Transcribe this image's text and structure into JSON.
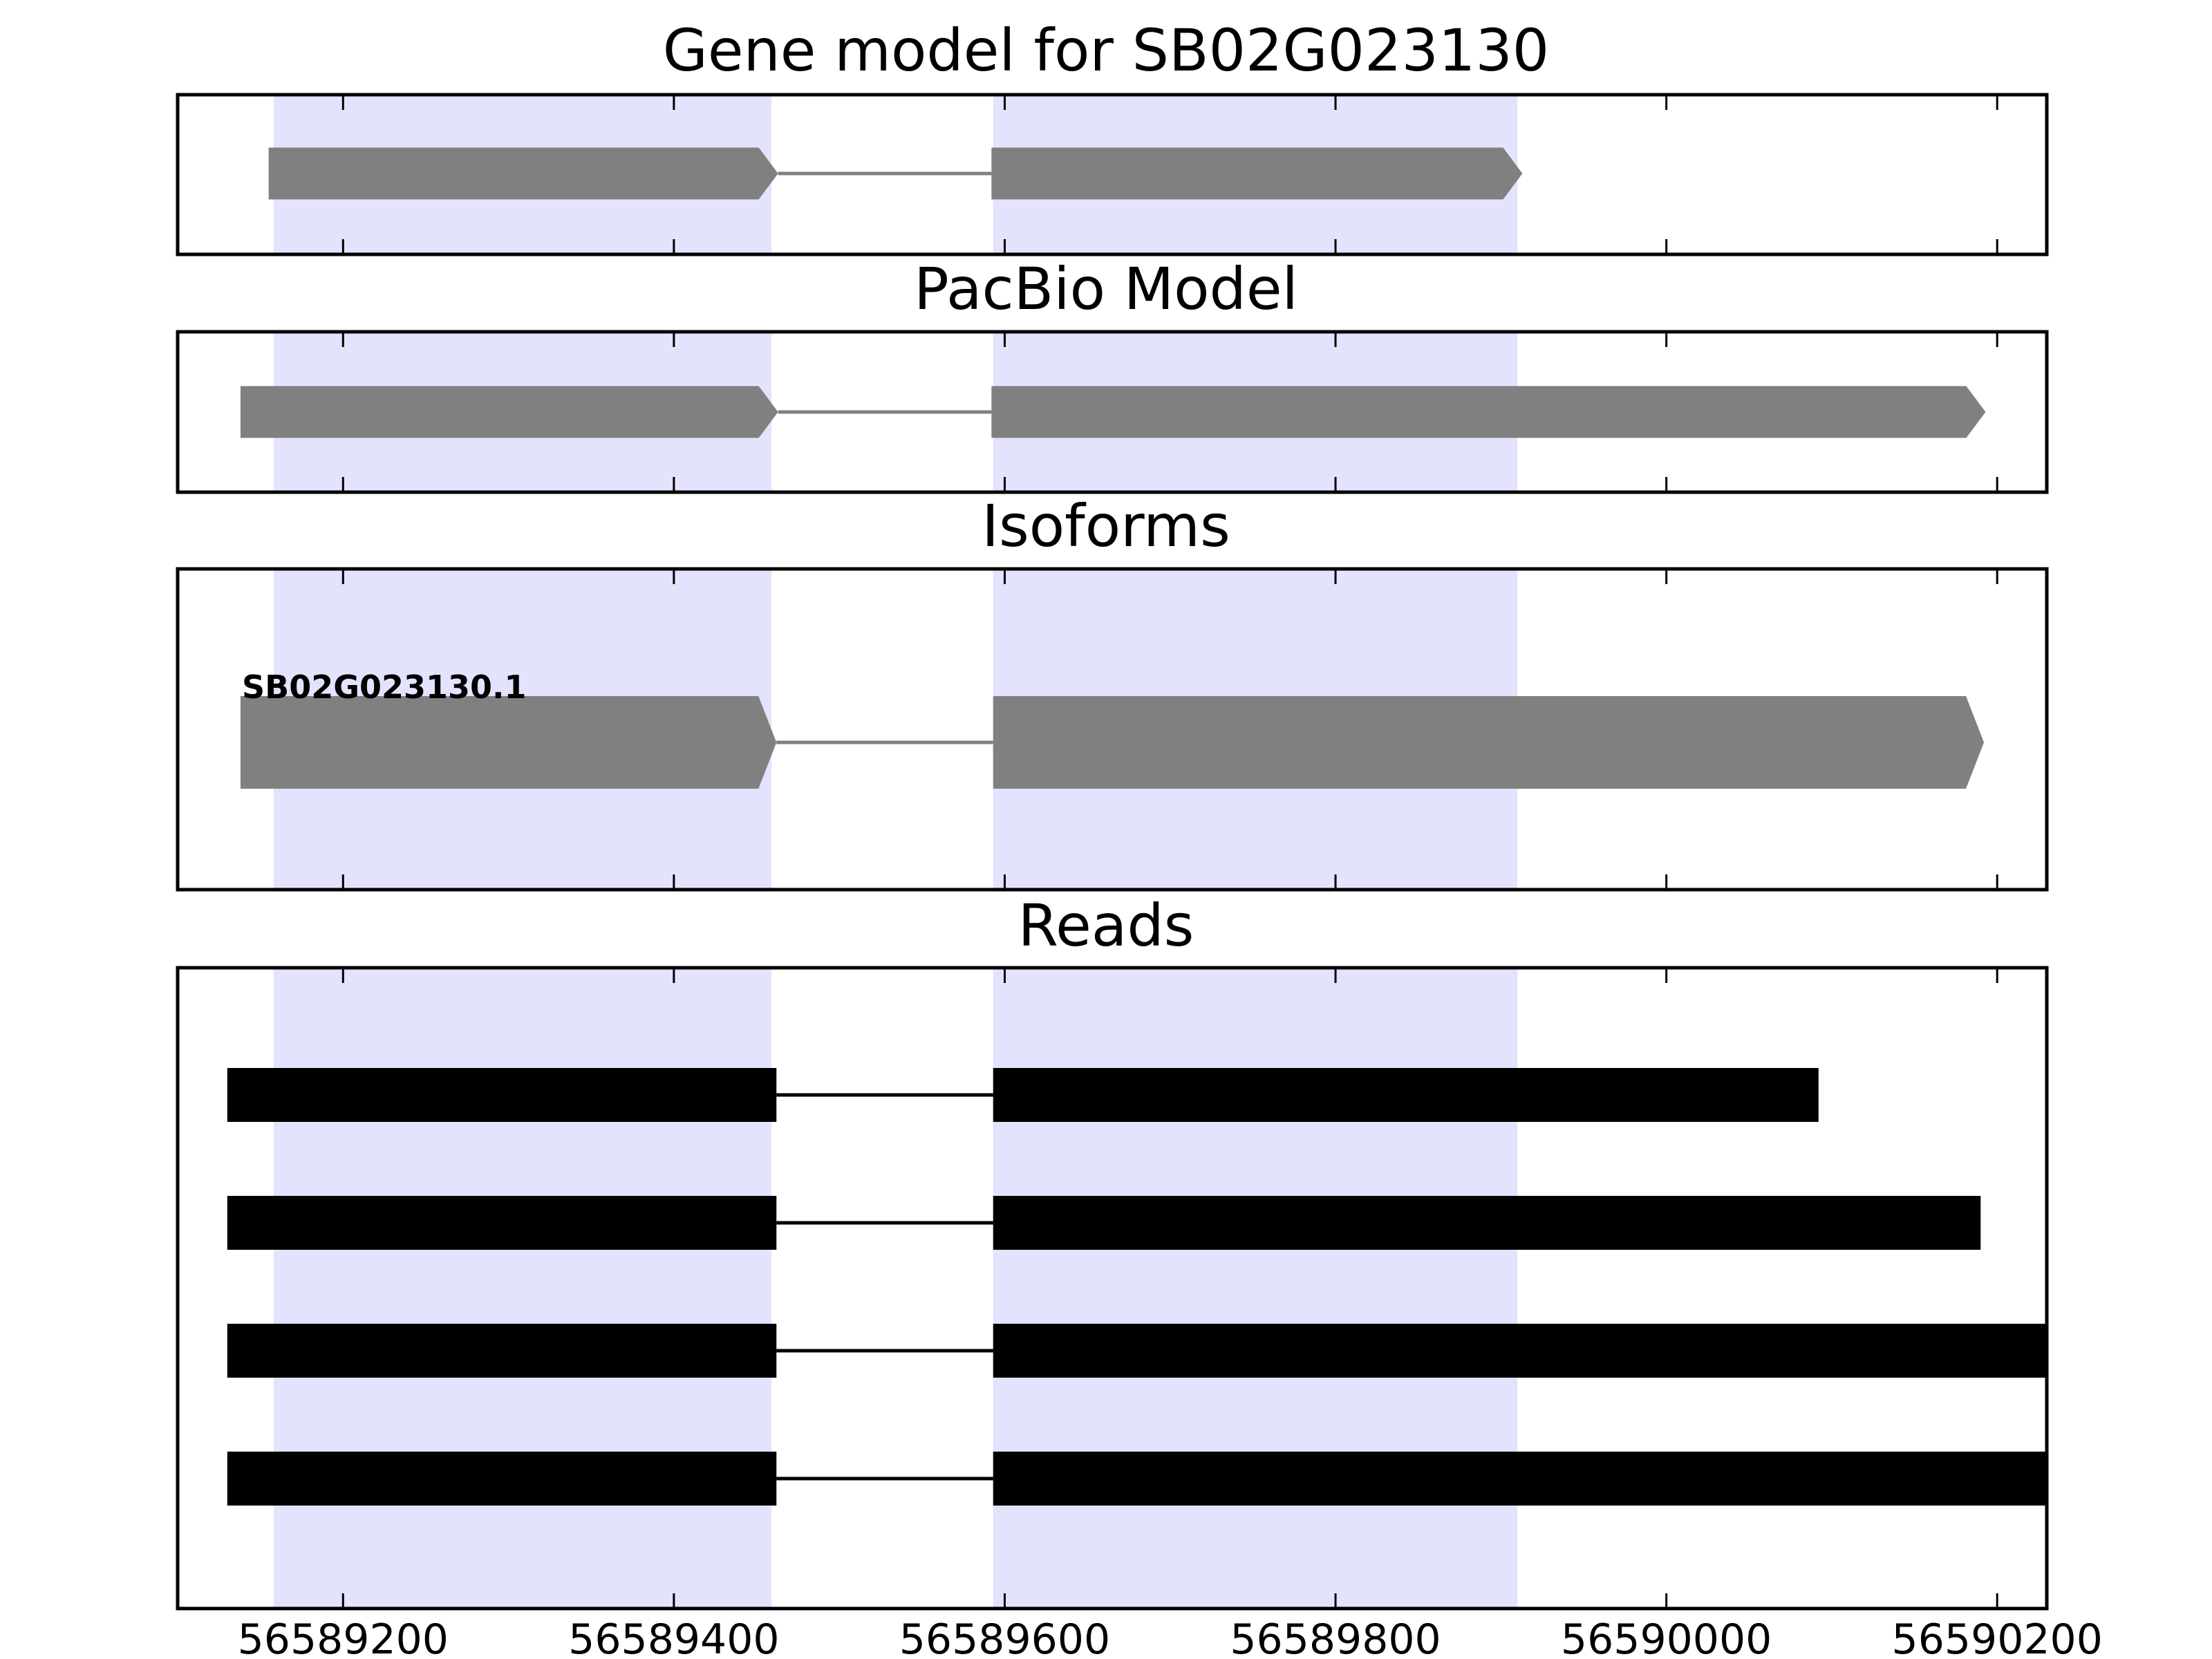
{
  "panels": {
    "gene_model": {
      "title": "Gene model for SB02G023130"
    },
    "pacbio": {
      "title": "PacBio Model"
    },
    "isoforms": {
      "title": "Isoforms",
      "labels": [
        "SB02G023130.1"
      ]
    },
    "reads": {
      "title": "Reads"
    }
  },
  "axis": {
    "xlim": [
      56589100,
      56590230
    ],
    "ticks": [
      56589200,
      56589400,
      56589600,
      56589800,
      56590000,
      56590200
    ],
    "tick_labels": [
      "56589200",
      "56589400",
      "56589600",
      "56589800",
      "56590000",
      "56590200"
    ]
  },
  "colors": {
    "exon_shading": "#e3e3fd",
    "model_fill": "#808080",
    "read_fill": "#000000",
    "frame": "#000000"
  },
  "chart_data": {
    "type": "gene-track",
    "x_unit": "genomic coordinate (bp)",
    "shaded_exon_regions": [
      [
        56589158,
        56589459
      ],
      [
        56589593,
        56589910
      ]
    ],
    "gene_model": {
      "strand": "+",
      "exons": [
        [
          56589155,
          56589463
        ],
        [
          56589592,
          56589913
        ]
      ]
    },
    "pacbio_model": {
      "strand": "+",
      "exons": [
        [
          56589138,
          56589463
        ],
        [
          56589592,
          56590193
        ]
      ]
    },
    "isoforms": [
      {
        "name": "SB02G023130.1",
        "strand": "+",
        "exons": [
          [
            56589138,
            56589462
          ],
          [
            56589593,
            56590192
          ]
        ]
      }
    ],
    "reads": [
      {
        "exons": [
          [
            56589130,
            56589462
          ],
          [
            56589593,
            56590092
          ]
        ]
      },
      {
        "exons": [
          [
            56589130,
            56589462
          ],
          [
            56589593,
            56590190
          ]
        ]
      },
      {
        "exons": [
          [
            56589130,
            56589462
          ],
          [
            56589593,
            56590230
          ]
        ]
      },
      {
        "exons": [
          [
            56589130,
            56589462
          ],
          [
            56589593,
            56590230
          ]
        ]
      }
    ]
  }
}
